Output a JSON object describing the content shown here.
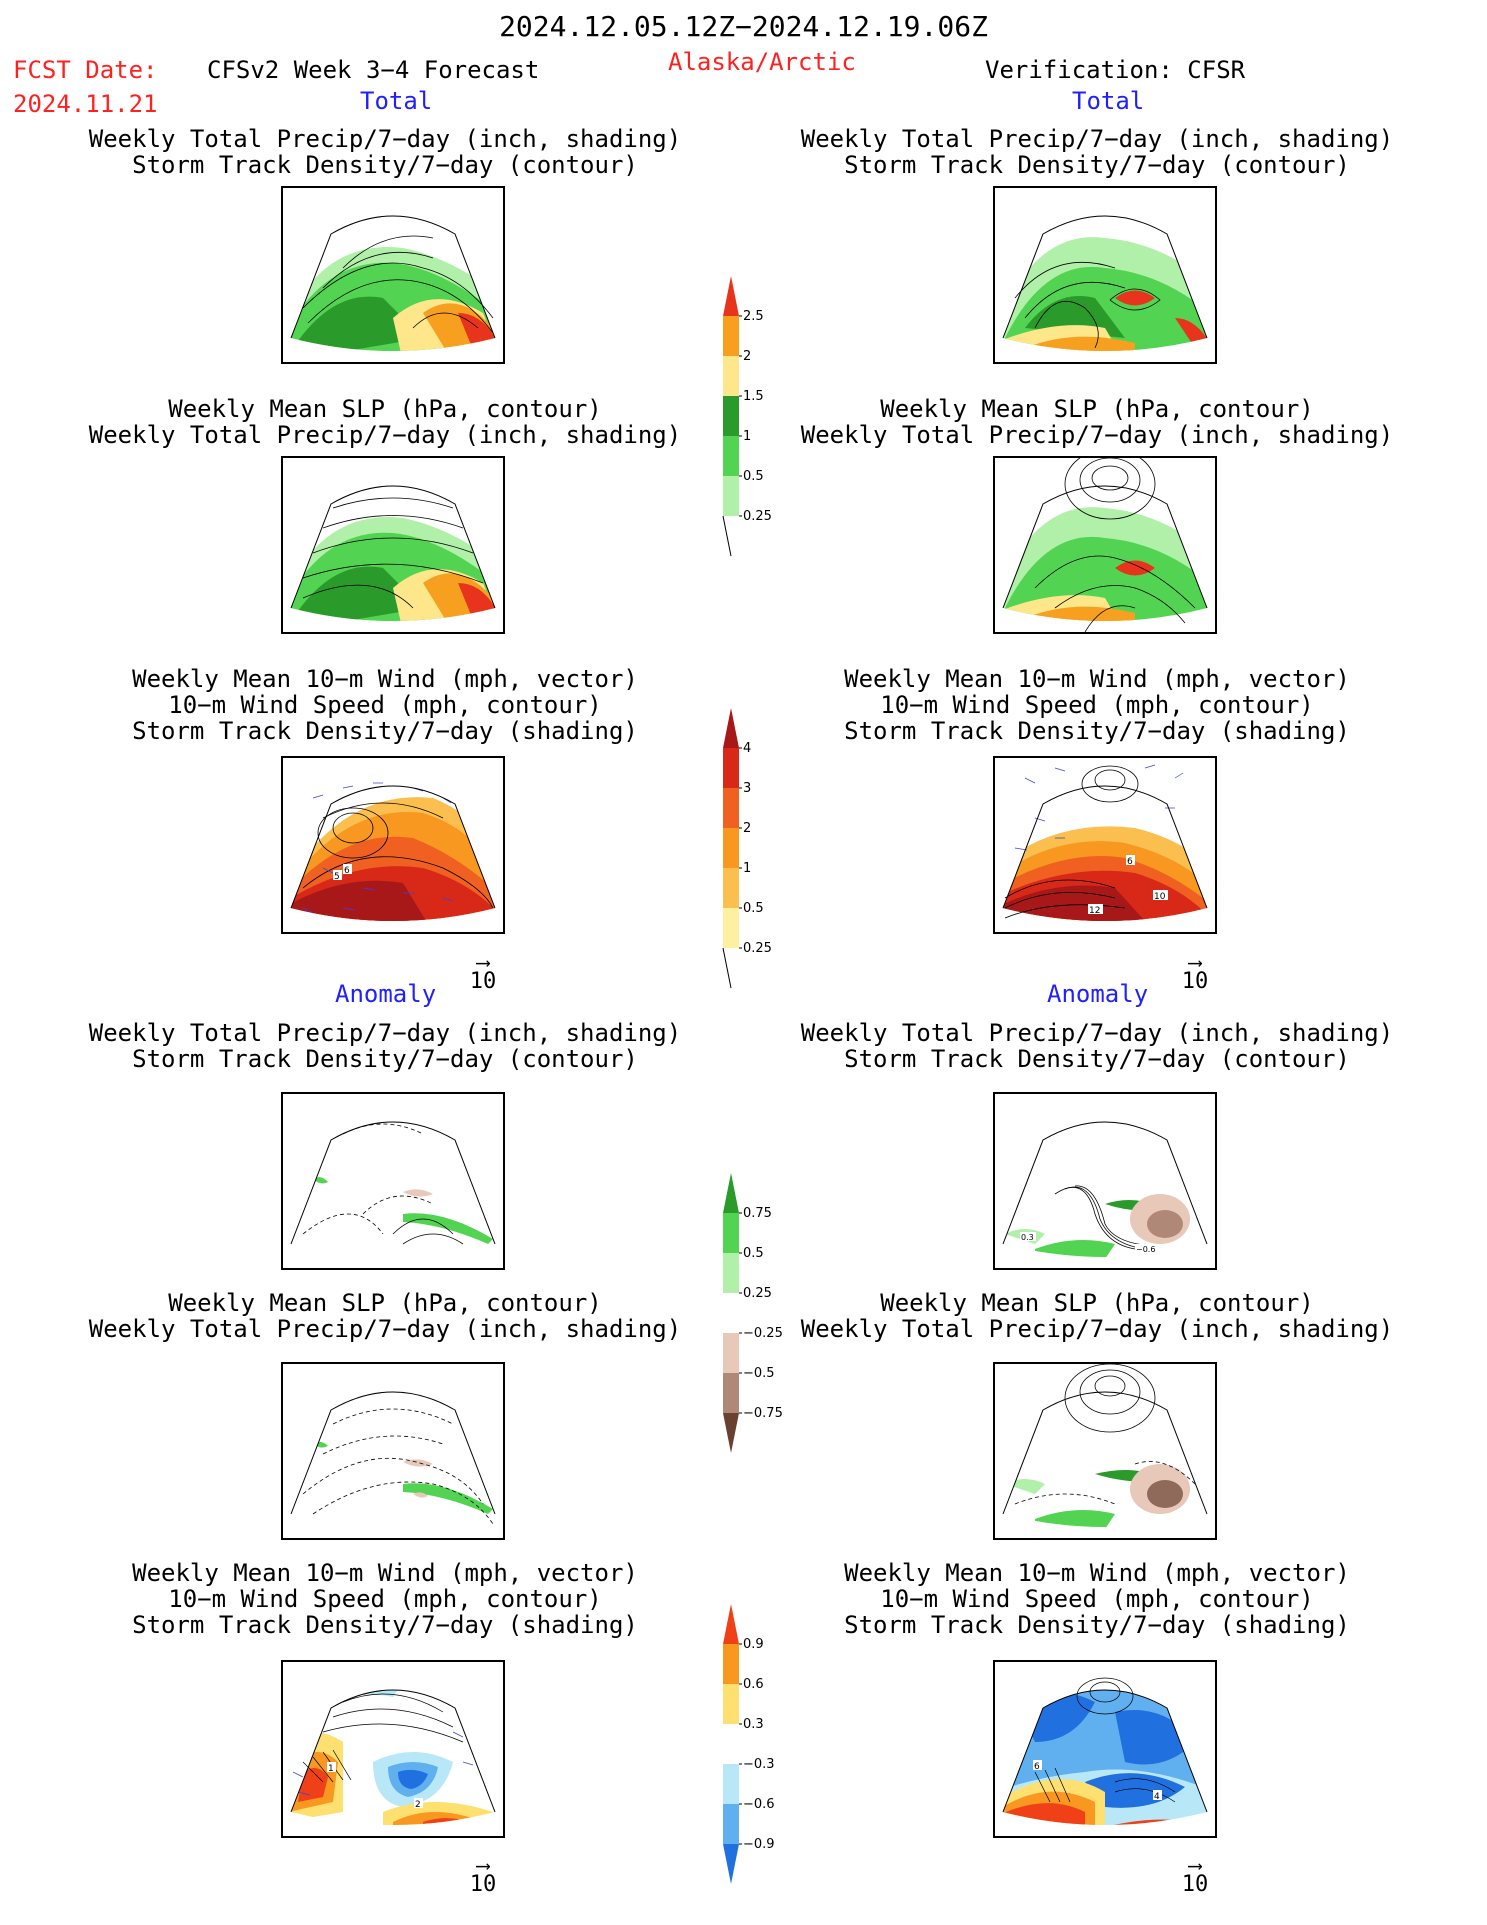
{
  "header": {
    "date_range": "2024.12.05.12Z−2024.12.19.06Z",
    "fcst_label": "FCST Date:",
    "fcst_date": "2024.11.21",
    "model": "CFSv2 Week 3−4 Forecast",
    "region": "Alaska/Arctic",
    "verification": "Verification: CFSR"
  },
  "sections": {
    "total": "Total",
    "anomaly": "Anomaly"
  },
  "titles": {
    "precip_track": "Weekly Total Precip/7−day (inch, shading)\nStorm Track Density/7−day (contour)",
    "slp_precip": "Weekly Mean SLP (hPa, contour)\nWeekly Total Precip/7−day (inch, shading)",
    "wind_track": "Weekly Mean 10−m Wind (mph, vector)\n10−m Wind Speed (mph, contour)\nStorm Track Density/7−day (shading)"
  },
  "vector_ref": "10",
  "colorbars": {
    "precip_total": {
      "labels": [
        "2.5",
        "2",
        "1.5",
        "1",
        "0.5",
        "0.25"
      ],
      "colors": [
        "#e8341c",
        "#f7a020",
        "#fde78a",
        "#2a9a2a",
        "#52d452",
        "#b0f0a8"
      ]
    },
    "track_total": {
      "labels": [
        "4",
        "3",
        "2",
        "1",
        "0.5",
        "0.25"
      ],
      "colors": [
        "#a81818",
        "#d82818",
        "#f06020",
        "#f89820",
        "#fbbf50",
        "#fdf0a0"
      ]
    },
    "precip_anom": {
      "labels": [
        "0.75",
        "0.5",
        "0.25",
        "−0.25",
        "−0.5",
        "−0.75"
      ],
      "colors": [
        "#2a9a2a",
        "#52d452",
        "#b0f0a8",
        "#ffffff",
        "#e8c8b8",
        "#b08878",
        "#6a4030"
      ]
    },
    "track_anom": {
      "labels": [
        "0.9",
        "0.6",
        "0.3",
        "−0.3",
        "−0.6",
        "−0.9"
      ],
      "colors": [
        "#f04018",
        "#f89820",
        "#fde070",
        "#ffffff",
        "#b8e8f8",
        "#60b0f0",
        "#2070e0"
      ]
    }
  },
  "panel_labels": {
    "wind_total_left": [
      "5",
      "6"
    ],
    "wind_total_right": [
      "6",
      "10",
      "12"
    ],
    "wind_anom_left": [
      "1",
      "2"
    ],
    "wind_anom_right": [
      "6",
      "4"
    ],
    "precip_anom_right": [
      "0.3",
      "−0.6"
    ]
  }
}
